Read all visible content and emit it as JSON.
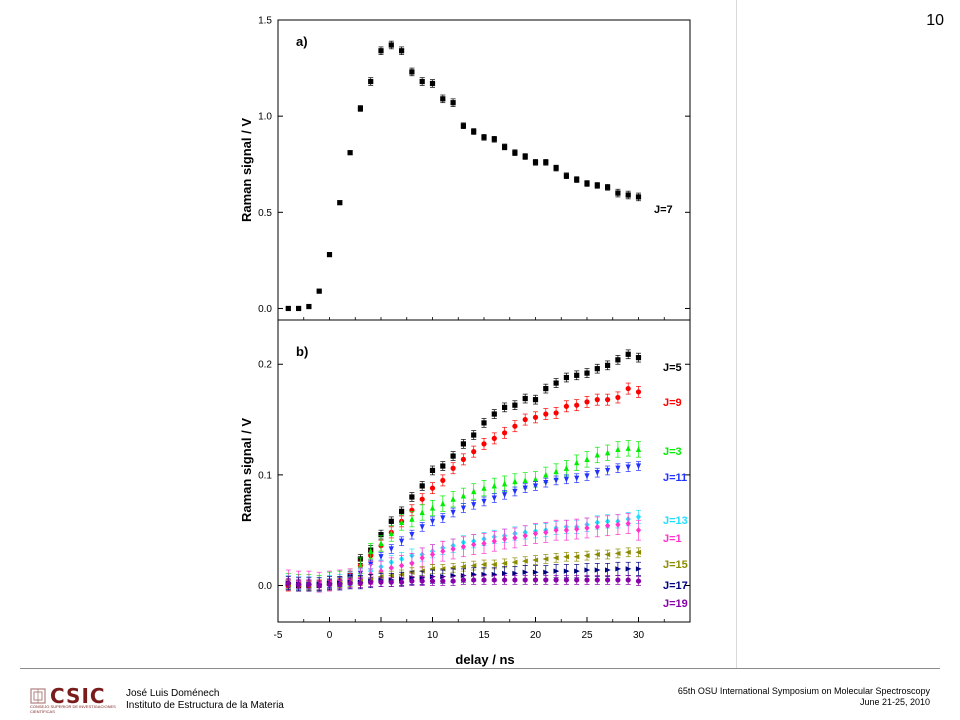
{
  "page_number": "10",
  "footer": {
    "logo_text": "CSIC",
    "logo_subtext": "CONSEJO SUPERIOR DE INVESTIGACIONES CIENTÍFICAS",
    "author_name": "José Luis Doménech",
    "author_affiliation": "Instituto de Estructura de la Materia",
    "conference_title": "65th OSU International Symposium on Molecular Spectroscopy",
    "conference_dates": "June 21-25, 2010"
  },
  "chart_data": [
    {
      "type": "scatter",
      "panel_label": "a)",
      "ylabel": "Raman signal / V",
      "xlabel": "",
      "xlim": [
        -5,
        35
      ],
      "ylim": [
        -0.06,
        1.5
      ],
      "yticks": [
        "0.0",
        "0.5",
        "1.0",
        "1.5"
      ],
      "ytick_values": [
        0,
        0.5,
        1.0,
        1.5
      ],
      "series": [
        {
          "name": "J=7",
          "color": "#000000",
          "marker": "square",
          "x": [
            -4,
            -3,
            -2,
            -1,
            0,
            1,
            2,
            3,
            4,
            5,
            6,
            7,
            8,
            9,
            10,
            11,
            12,
            13,
            14,
            15,
            16,
            17,
            18,
            19,
            20,
            21,
            22,
            23,
            24,
            25,
            26,
            27,
            28,
            29,
            30
          ],
          "y": [
            0.0,
            0.0,
            0.01,
            0.09,
            0.28,
            0.55,
            0.81,
            1.04,
            1.18,
            1.34,
            1.37,
            1.34,
            1.23,
            1.18,
            1.17,
            1.09,
            1.07,
            0.95,
            0.92,
            0.89,
            0.88,
            0.84,
            0.81,
            0.79,
            0.76,
            0.76,
            0.73,
            0.69,
            0.67,
            0.65,
            0.64,
            0.63,
            0.6,
            0.59,
            0.58
          ],
          "err": [
            0.005,
            0.005,
            0.005,
            0.005,
            0.01,
            0.01,
            0.01,
            0.015,
            0.02,
            0.02,
            0.02,
            0.02,
            0.02,
            0.02,
            0.02,
            0.02,
            0.02,
            0.015,
            0.015,
            0.015,
            0.015,
            0.015,
            0.015,
            0.015,
            0.015,
            0.015,
            0.015,
            0.015,
            0.015,
            0.015,
            0.015,
            0.015,
            0.02,
            0.02,
            0.02
          ]
        }
      ]
    },
    {
      "type": "scatter",
      "panel_label": "b)",
      "ylabel": "Raman signal / V",
      "xlabel": "delay / ns",
      "xlim": [
        -5,
        35
      ],
      "ylim": [
        -0.033,
        0.24
      ],
      "xticks": [
        "-5",
        "0",
        "5",
        "10",
        "15",
        "20",
        "25",
        "30"
      ],
      "xtick_values": [
        -5,
        0,
        5,
        10,
        15,
        20,
        25,
        30
      ],
      "yticks": [
        "0.0",
        "0.1",
        "0.2"
      ],
      "ytick_values": [
        0,
        0.1,
        0.2
      ],
      "x": [
        -4,
        -3,
        -2,
        -1,
        0,
        1,
        2,
        3,
        4,
        5,
        6,
        7,
        8,
        9,
        10,
        11,
        12,
        13,
        14,
        15,
        16,
        17,
        18,
        19,
        20,
        21,
        22,
        23,
        24,
        25,
        26,
        27,
        28,
        29,
        30
      ],
      "series": [
        {
          "name": "J=5",
          "color": "#000000",
          "marker": "square",
          "y": [
            0.001,
            0.0,
            0.0,
            0.0,
            0.002,
            0.003,
            0.009,
            0.024,
            0.032,
            0.046,
            0.058,
            0.067,
            0.08,
            0.09,
            0.104,
            0.108,
            0.117,
            0.128,
            0.136,
            0.147,
            0.155,
            0.161,
            0.163,
            0.169,
            0.168,
            0.178,
            0.183,
            0.188,
            0.19,
            0.192,
            0.196,
            0.199,
            0.204,
            0.209,
            0.206
          ],
          "err": 0.004
        },
        {
          "name": "J=9",
          "color": "#ff0000",
          "marker": "circle",
          "y": [
            0.0,
            0.0,
            0.0,
            0.0,
            0.001,
            0.003,
            0.006,
            0.018,
            0.027,
            0.036,
            0.048,
            0.058,
            0.068,
            0.078,
            0.088,
            0.095,
            0.106,
            0.114,
            0.121,
            0.128,
            0.133,
            0.138,
            0.144,
            0.15,
            0.152,
            0.155,
            0.156,
            0.162,
            0.163,
            0.166,
            0.168,
            0.168,
            0.17,
            0.178,
            0.175
          ],
          "err": 0.005
        },
        {
          "name": "J=3",
          "color": "#00ee00",
          "marker": "triangle-up",
          "y": [
            0.004,
            0.003,
            0.003,
            0.002,
            0.005,
            0.006,
            0.008,
            0.018,
            0.031,
            0.038,
            0.047,
            0.057,
            0.06,
            0.066,
            0.07,
            0.074,
            0.078,
            0.081,
            0.085,
            0.088,
            0.09,
            0.092,
            0.094,
            0.095,
            0.096,
            0.1,
            0.103,
            0.106,
            0.111,
            0.114,
            0.118,
            0.12,
            0.123,
            0.124,
            0.123
          ],
          "err": 0.007
        },
        {
          "name": "J=11",
          "color": "#2233ff",
          "marker": "triangle-down",
          "y": [
            0.001,
            0.001,
            0.001,
            0.0,
            0.002,
            0.003,
            0.006,
            0.011,
            0.019,
            0.026,
            0.033,
            0.04,
            0.046,
            0.053,
            0.058,
            0.061,
            0.066,
            0.07,
            0.073,
            0.076,
            0.079,
            0.082,
            0.085,
            0.088,
            0.09,
            0.093,
            0.095,
            0.096,
            0.097,
            0.099,
            0.102,
            0.104,
            0.106,
            0.107,
            0.108
          ],
          "err": 0.004
        },
        {
          "name": "J=13",
          "color": "#22ddff",
          "marker": "diamond",
          "y": [
            0.003,
            0.002,
            0.002,
            0.001,
            0.003,
            0.004,
            0.006,
            0.009,
            0.013,
            0.017,
            0.021,
            0.024,
            0.027,
            0.028,
            0.031,
            0.034,
            0.036,
            0.039,
            0.04,
            0.042,
            0.044,
            0.045,
            0.047,
            0.048,
            0.049,
            0.05,
            0.052,
            0.053,
            0.053,
            0.055,
            0.057,
            0.058,
            0.058,
            0.06,
            0.062
          ],
          "err": 0.006
        },
        {
          "name": "J=1",
          "color": "#ff33cc",
          "marker": "diamond",
          "y": [
            0.005,
            0.004,
            0.004,
            0.003,
            0.004,
            0.005,
            0.006,
            0.007,
            0.01,
            0.013,
            0.016,
            0.018,
            0.02,
            0.025,
            0.028,
            0.031,
            0.033,
            0.035,
            0.037,
            0.038,
            0.04,
            0.042,
            0.043,
            0.045,
            0.047,
            0.048,
            0.05,
            0.05,
            0.051,
            0.052,
            0.053,
            0.054,
            0.055,
            0.056,
            0.05
          ],
          "err": 0.009
        },
        {
          "name": "J=15",
          "color": "#8b8b00",
          "marker": "triangle-left",
          "y": [
            0.001,
            0.001,
            0.0,
            0.0,
            0.001,
            0.002,
            0.003,
            0.004,
            0.006,
            0.008,
            0.009,
            0.01,
            0.012,
            0.013,
            0.015,
            0.015,
            0.016,
            0.017,
            0.018,
            0.019,
            0.019,
            0.02,
            0.021,
            0.022,
            0.023,
            0.024,
            0.025,
            0.026,
            0.026,
            0.027,
            0.028,
            0.028,
            0.029,
            0.03,
            0.03
          ],
          "err": 0.004
        },
        {
          "name": "J=17",
          "color": "#000080",
          "marker": "triangle-right",
          "y": [
            0.002,
            0.001,
            0.001,
            0.001,
            0.002,
            0.002,
            0.003,
            0.003,
            0.004,
            0.005,
            0.005,
            0.006,
            0.007,
            0.007,
            0.008,
            0.008,
            0.009,
            0.009,
            0.01,
            0.01,
            0.01,
            0.011,
            0.011,
            0.012,
            0.012,
            0.012,
            0.013,
            0.013,
            0.013,
            0.014,
            0.014,
            0.014,
            0.015,
            0.015,
            0.015
          ],
          "err": 0.006
        },
        {
          "name": "J=19",
          "color": "#8800aa",
          "marker": "circle",
          "y": [
            0.002,
            0.001,
            0.001,
            0.0,
            0.001,
            0.001,
            0.002,
            0.002,
            0.003,
            0.003,
            0.003,
            0.003,
            0.004,
            0.004,
            0.004,
            0.004,
            0.004,
            0.005,
            0.005,
            0.005,
            0.005,
            0.005,
            0.005,
            0.005,
            0.005,
            0.005,
            0.005,
            0.005,
            0.005,
            0.005,
            0.005,
            0.005,
            0.005,
            0.005,
            0.004
          ],
          "err": 0.004
        }
      ]
    }
  ]
}
